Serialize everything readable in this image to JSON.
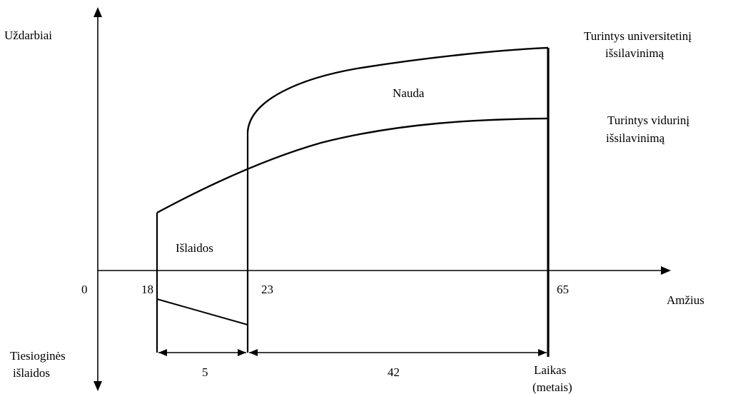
{
  "labels": {
    "y_axis": "Uždarbiai",
    "x_axis": "Amžius",
    "origin": "0",
    "age_18": "18",
    "age_23": "23",
    "age_65": "65",
    "university_line1": "Turintys universitetinį",
    "university_line2": "išsilavinimą",
    "secondary_line1": "Turintys vidurinį",
    "secondary_line2": "išsilavinimą",
    "benefit": "Nauda",
    "costs": "Išlaidos",
    "direct_costs_line1": "Tiesioginės",
    "direct_costs_line2": "išlaidos",
    "span_study": "5",
    "span_work": "42",
    "time_line1": "Laikas",
    "time_line2": "(metais)"
  },
  "colors": {
    "line": "#000000",
    "background": "#ffffff"
  }
}
